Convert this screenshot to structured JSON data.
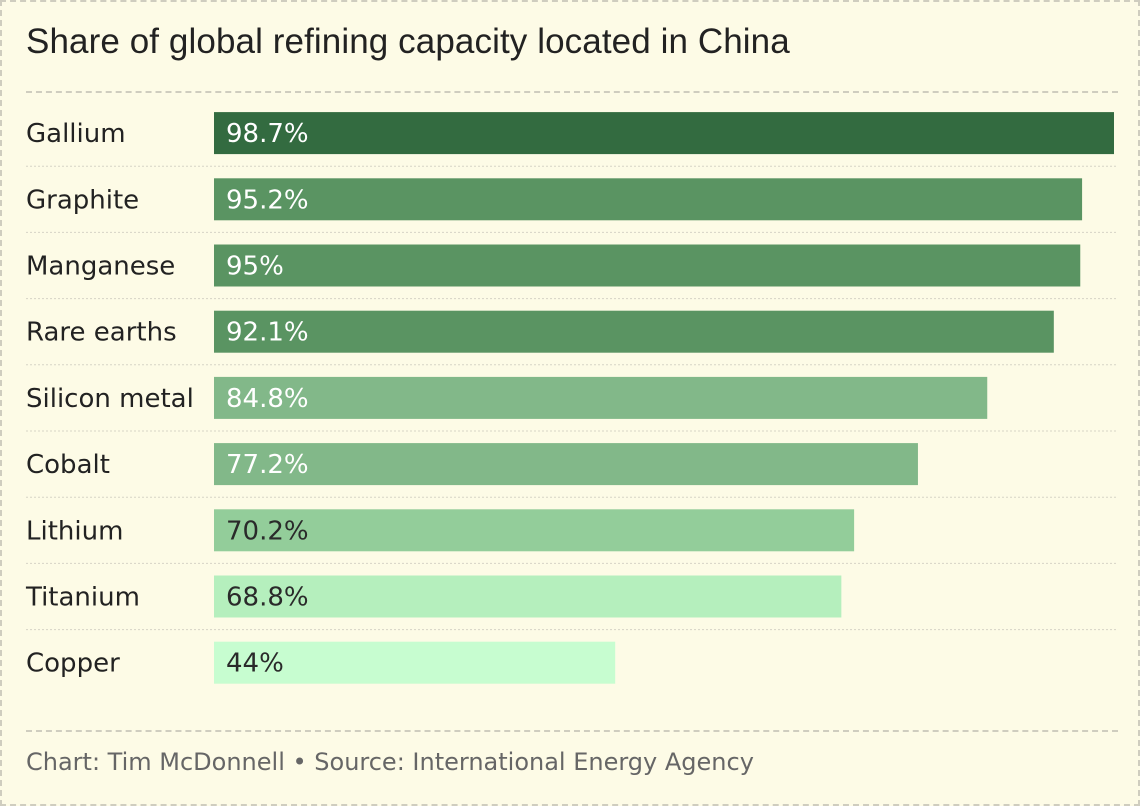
{
  "chart_data": {
    "type": "bar",
    "orientation": "horizontal",
    "title": "Share of global refining capacity located in China",
    "categories": [
      "Gallium",
      "Graphite",
      "Manganese",
      "Rare earths",
      "Silicon metal",
      "Cobalt",
      "Lithium",
      "Titanium",
      "Copper"
    ],
    "values": [
      98.7,
      95.2,
      95,
      92.1,
      84.8,
      77.2,
      70.2,
      68.8,
      44
    ],
    "value_labels": [
      "98.7%",
      "95.2%",
      "95%",
      "92.1%",
      "84.8%",
      "77.2%",
      "70.2%",
      "68.8%",
      "44%"
    ],
    "xlim": [
      0,
      98.7
    ],
    "grid": false,
    "legend": "none",
    "bar_colors": [
      "#336b40",
      "#5a9462",
      "#5a9462",
      "#5a9462",
      "#82b889",
      "#82b889",
      "#93cd9a",
      "#b5efbd",
      "#c7fdd0"
    ],
    "value_text_colors": [
      "#ffffff",
      "#ffffff",
      "#ffffff",
      "#ffffff",
      "#ffffff",
      "#ffffff",
      "#2a2a2a",
      "#2a2a2a",
      "#2a2a2a"
    ]
  },
  "footer": {
    "caption": "Chart: Tim McDonnell • Source: International Energy Agency"
  },
  "colors": {
    "background": "#fdfbe6",
    "rule": "#cfcdbf",
    "label": "#222222",
    "caption": "#666666"
  }
}
